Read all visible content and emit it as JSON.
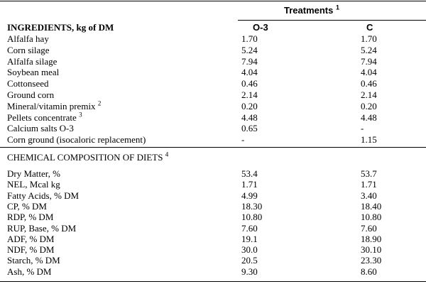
{
  "header": {
    "group_title": "Treatments",
    "group_title_sup": "1",
    "ingredients_title": "INGREDIENTS, kg of DM",
    "col1": "O-3",
    "col2": "C"
  },
  "ingredients": [
    {
      "label": "Alfalfa hay",
      "sup": "",
      "o3": "1.70",
      "c": "1.70"
    },
    {
      "label": "Corn silage",
      "sup": "",
      "o3": "5.24",
      "c": "5.24"
    },
    {
      "label": "Alfalfa silage",
      "sup": "",
      "o3": "7.94",
      "c": "7.94"
    },
    {
      "label": "Soybean meal",
      "sup": "",
      "o3": "4.04",
      "c": "4.04"
    },
    {
      "label": "Cottonseed",
      "sup": "",
      "o3": "0.46",
      "c": "0.46"
    },
    {
      "label": "Ground corn",
      "sup": "",
      "o3": "2.14",
      "c": "2.14"
    },
    {
      "label": "Mineral/vitamin premix",
      "sup": "2",
      "o3": "0.20",
      "c": "0.20"
    },
    {
      "label": "Pellets concentrate",
      "sup": "3",
      "o3": "4.48",
      "c": "4.48"
    },
    {
      "label": "Calcium salts O-3",
      "sup": "",
      "o3": "0.65",
      "c": "-"
    },
    {
      "label": "Corn ground (isocaloric replacement)",
      "sup": "",
      "o3": "-",
      "c": "1.15"
    }
  ],
  "chemical": {
    "title": "CHEMICAL COMPOSITION OF DIETS",
    "title_sup": "4",
    "rows": [
      {
        "label": "Dry Matter, %",
        "o3": "53.4",
        "c": "53.7"
      },
      {
        "label": "NEL, Mcal kg",
        "o3": "1.71",
        "c": "1.71"
      },
      {
        "label": "Fatty Acids, % DM",
        "o3": "4.99",
        "c": "3.40"
      },
      {
        "label": "CP, % DM",
        "o3": "18.30",
        "c": "18.40"
      },
      {
        "label": "RDP, % DM",
        "o3": "10.80",
        "c": "10.80"
      },
      {
        "label": "RUP, Base, % DM",
        "o3": "7.60",
        "c": "7.60"
      },
      {
        "label": "ADF, % DM",
        "o3": "19.1",
        "c": "18.90"
      },
      {
        "label": "NDF, % DM",
        "o3": "30.0",
        "c": "30.10"
      },
      {
        "label": "Starch, % DM",
        "o3": "20.5",
        "c": "23.30"
      },
      {
        "label": "Ash, % DM",
        "o3": "9.30",
        "c": "8.60"
      }
    ]
  }
}
